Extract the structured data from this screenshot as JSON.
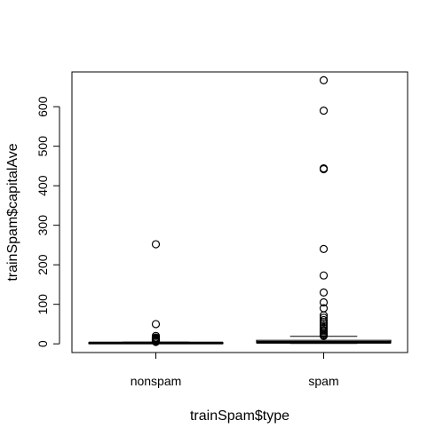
{
  "chart_data": {
    "type": "boxplot",
    "xlabel": "trainSpam$type",
    "ylabel": "trainSpam$capitalAve",
    "ylim": [
      -22,
      688
    ],
    "yticks": [
      0,
      100,
      200,
      300,
      400,
      500,
      600
    ],
    "grid": false,
    "categories": [
      "nonspam",
      "spam"
    ],
    "boxes": [
      {
        "name": "nonspam",
        "whisker_low": 1.0,
        "q1": 1.5,
        "median": 2.2,
        "q3": 3.0,
        "whisker_high": 4.5,
        "outliers": [
          252,
          50,
          20,
          16,
          14,
          12,
          10,
          9,
          8,
          7,
          6,
          5.5,
          5
        ]
      },
      {
        "name": "spam",
        "whisker_low": 1.0,
        "q1": 2.5,
        "median": 3.8,
        "q3": 9.0,
        "whisker_high": 19.0,
        "outliers": [
          667,
          590,
          444,
          442,
          240,
          173,
          130,
          105,
          90,
          72,
          66,
          60,
          55,
          50,
          45,
          40,
          35,
          32,
          28,
          25,
          22,
          20
        ]
      }
    ]
  }
}
